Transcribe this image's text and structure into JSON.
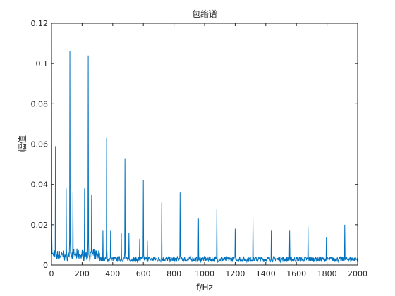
{
  "chart_data": {
    "type": "line",
    "title": "包络谱",
    "xlabel": "f/Hz",
    "ylabel": "幅值",
    "xlim": [
      0,
      2000
    ],
    "ylim": [
      0,
      0.12
    ],
    "x_ticks": [
      0,
      200,
      400,
      600,
      800,
      1000,
      1200,
      1400,
      1600,
      1800,
      2000
    ],
    "y_ticks": [
      0,
      0.02,
      0.04,
      0.06,
      0.08,
      0.1,
      0.12
    ],
    "x_tick_labels": [
      "0",
      "200",
      "400",
      "600",
      "800",
      "1000",
      "1200",
      "1400",
      "1600",
      "1800",
      "2000"
    ],
    "y_tick_labels": [
      "0",
      "0.02",
      "0.04",
      "0.06",
      "0.08",
      "0.1",
      "0.12"
    ],
    "grid": false,
    "line_color": "#0072BD",
    "noise_level": 0.003,
    "peaks": [
      {
        "x": 0,
        "y": 0.12
      },
      {
        "x": 25,
        "y": 0.059
      },
      {
        "x": 95,
        "y": 0.038
      },
      {
        "x": 120,
        "y": 0.106
      },
      {
        "x": 140,
        "y": 0.036
      },
      {
        "x": 215,
        "y": 0.038
      },
      {
        "x": 240,
        "y": 0.104
      },
      {
        "x": 262,
        "y": 0.035
      },
      {
        "x": 335,
        "y": 0.017
      },
      {
        "x": 360,
        "y": 0.063
      },
      {
        "x": 385,
        "y": 0.017
      },
      {
        "x": 455,
        "y": 0.016
      },
      {
        "x": 480,
        "y": 0.053
      },
      {
        "x": 505,
        "y": 0.016
      },
      {
        "x": 575,
        "y": 0.013
      },
      {
        "x": 600,
        "y": 0.042
      },
      {
        "x": 625,
        "y": 0.012
      },
      {
        "x": 720,
        "y": 0.031
      },
      {
        "x": 840,
        "y": 0.036
      },
      {
        "x": 960,
        "y": 0.023
      },
      {
        "x": 1080,
        "y": 0.028
      },
      {
        "x": 1200,
        "y": 0.018
      },
      {
        "x": 1315,
        "y": 0.023
      },
      {
        "x": 1435,
        "y": 0.017
      },
      {
        "x": 1555,
        "y": 0.017
      },
      {
        "x": 1675,
        "y": 0.019
      },
      {
        "x": 1795,
        "y": 0.014
      },
      {
        "x": 1915,
        "y": 0.02
      }
    ]
  }
}
